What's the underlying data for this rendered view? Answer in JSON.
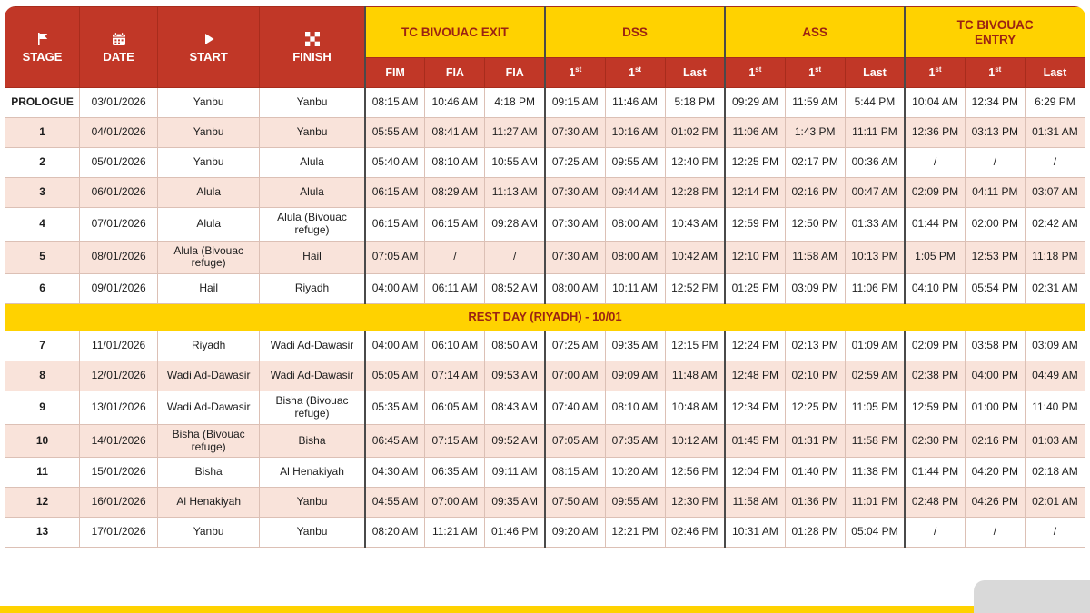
{
  "colors": {
    "accent_red": "#c13727",
    "accent_yellow": "#ffd200",
    "row_pink": "#f9e3da",
    "dark_red_text": "#9b2313"
  },
  "chart_data": {
    "type": "table",
    "columns": [
      {
        "label": "STAGE",
        "icon": "flag-icon"
      },
      {
        "label": "DATE",
        "icon": "calendar-icon"
      },
      {
        "label": "START",
        "icon": "play-icon"
      },
      {
        "label": "FINISH",
        "icon": "checkered-flag-icon"
      }
    ],
    "column_groups": [
      {
        "label": "TC BIVOUAC EXIT",
        "subs": [
          "FIM",
          "FIA",
          "FIA"
        ]
      },
      {
        "label": "DSS",
        "subs": [
          "1st",
          "1st",
          "Last"
        ]
      },
      {
        "label": "ASS",
        "subs": [
          "1st",
          "1st",
          "Last"
        ]
      },
      {
        "label": "TC BIVOUAC ENTRY",
        "subs": [
          "1st",
          "1st",
          "Last"
        ]
      }
    ],
    "rows": [
      {
        "stage": "PROLOGUE",
        "date": "03/01/2026",
        "start": "Yanbu",
        "finish": "Yanbu",
        "times": [
          "08:15 AM",
          "10:46 AM",
          "4:18 PM",
          "09:15 AM",
          "11:46 AM",
          "5:18 PM",
          "09:29 AM",
          "11:59 AM",
          "5:44 PM",
          "10:04 AM",
          "12:34 PM",
          "6:29 PM"
        ]
      },
      {
        "stage": "1",
        "date": "04/01/2026",
        "start": "Yanbu",
        "finish": "Yanbu",
        "times": [
          "05:55 AM",
          "08:41 AM",
          "11:27 AM",
          "07:30 AM",
          "10:16 AM",
          "01:02 PM",
          "11:06 AM",
          "1:43 PM",
          "11:11 PM",
          "12:36 PM",
          "03:13 PM",
          "01:31 AM"
        ]
      },
      {
        "stage": "2",
        "date": "05/01/2026",
        "start": "Yanbu",
        "finish": "Alula",
        "times": [
          "05:40 AM",
          "08:10 AM",
          "10:55 AM",
          "07:25 AM",
          "09:55 AM",
          "12:40 PM",
          "12:25 PM",
          "02:17 PM",
          "00:36 AM",
          "/",
          "/",
          "/"
        ]
      },
      {
        "stage": "3",
        "date": "06/01/2026",
        "start": "Alula",
        "finish": "Alula",
        "times": [
          "06:15 AM",
          "08:29 AM",
          "11:13 AM",
          "07:30 AM",
          "09:44 AM",
          "12:28 PM",
          "12:14 PM",
          "02:16 PM",
          "00:47 AM",
          "02:09 PM",
          "04:11 PM",
          "03:07 AM"
        ]
      },
      {
        "stage": "4",
        "date": "07/01/2026",
        "start": "Alula",
        "finish": "Alula (Bivouac refuge)",
        "times": [
          "06:15 AM",
          "06:15 AM",
          "09:28 AM",
          "07:30 AM",
          "08:00 AM",
          "10:43 AM",
          "12:59 PM",
          "12:50 PM",
          "01:33 AM",
          "01:44 PM",
          "02:00 PM",
          "02:42 AM"
        ]
      },
      {
        "stage": "5",
        "date": "08/01/2026",
        "start": "Alula (Bivouac refuge)",
        "finish": "Hail",
        "times": [
          "07:05 AM",
          "/",
          "/",
          "07:30 AM",
          "08:00 AM",
          "10:42 AM",
          "12:10 PM",
          "11:58 AM",
          "10:13 PM",
          "1:05 PM",
          "12:53 PM",
          "11:18 PM"
        ]
      },
      {
        "stage": "6",
        "date": "09/01/2026",
        "start": "Hail",
        "finish": "Riyadh",
        "times": [
          "04:00 AM",
          "06:11 AM",
          "08:52 AM",
          "08:00 AM",
          "10:11 AM",
          "12:52 PM",
          "01:25 PM",
          "03:09 PM",
          "11:06 PM",
          "04:10 PM",
          "05:54 PM",
          "02:31 AM"
        ]
      },
      {
        "type": "rest_day",
        "label": "REST DAY (RIYADH) - 10/01"
      },
      {
        "stage": "7",
        "date": "11/01/2026",
        "start": "Riyadh",
        "finish": "Wadi Ad-Dawasir",
        "times": [
          "04:00 AM",
          "06:10 AM",
          "08:50 AM",
          "07:25 AM",
          "09:35 AM",
          "12:15 PM",
          "12:24 PM",
          "02:13 PM",
          "01:09 AM",
          "02:09 PM",
          "03:58 PM",
          "03:09 AM"
        ]
      },
      {
        "stage": "8",
        "date": "12/01/2026",
        "start": "Wadi Ad-Dawasir",
        "finish": "Wadi Ad-Dawasir",
        "times": [
          "05:05 AM",
          "07:14 AM",
          "09:53 AM",
          "07:00 AM",
          "09:09 AM",
          "11:48 AM",
          "12:48 PM",
          "02:10 PM",
          "02:59 AM",
          "02:38 PM",
          "04:00 PM",
          "04:49 AM"
        ]
      },
      {
        "stage": "9",
        "date": "13/01/2026",
        "start": "Wadi Ad-Dawasir",
        "finish": "Bisha (Bivouac refuge)",
        "times": [
          "05:35 AM",
          "06:05 AM",
          "08:43 AM",
          "07:40 AM",
          "08:10 AM",
          "10:48 AM",
          "12:34 PM",
          "12:25 PM",
          "11:05 PM",
          "12:59 PM",
          "01:00 PM",
          "11:40 PM"
        ]
      },
      {
        "stage": "10",
        "date": "14/01/2026",
        "start": "Bisha (Bivouac refuge)",
        "finish": "Bisha",
        "times": [
          "06:45 AM",
          "07:15 AM",
          "09:52 AM",
          "07:05 AM",
          "07:35 AM",
          "10:12 AM",
          "01:45 PM",
          "01:31 PM",
          "11:58 PM",
          "02:30 PM",
          "02:16 PM",
          "01:03 AM"
        ]
      },
      {
        "stage": "11",
        "date": "15/01/2026",
        "start": "Bisha",
        "finish": "Al Henakiyah",
        "times": [
          "04:30 AM",
          "06:35 AM",
          "09:11 AM",
          "08:15 AM",
          "10:20 AM",
          "12:56 PM",
          "12:04 PM",
          "01:40 PM",
          "11:38 PM",
          "01:44 PM",
          "04:20 PM",
          "02:18 AM"
        ]
      },
      {
        "stage": "12",
        "date": "16/01/2026",
        "start": "Al Henakiyah",
        "finish": "Yanbu",
        "times": [
          "04:55 AM",
          "07:00 AM",
          "09:35 AM",
          "07:50 AM",
          "09:55 AM",
          "12:30 PM",
          "11:58 AM",
          "01:36 PM",
          "11:01 PM",
          "02:48 PM",
          "04:26 PM",
          "02:01 AM"
        ]
      },
      {
        "stage": "13",
        "date": "17/01/2026",
        "start": "Yanbu",
        "finish": "Yanbu",
        "times": [
          "08:20 AM",
          "11:21 AM",
          "01:46 PM",
          "09:20 AM",
          "12:21 PM",
          "02:46 PM",
          "10:31 AM",
          "01:28 PM",
          "05:04 PM",
          "/",
          "/",
          "/"
        ]
      }
    ]
  }
}
